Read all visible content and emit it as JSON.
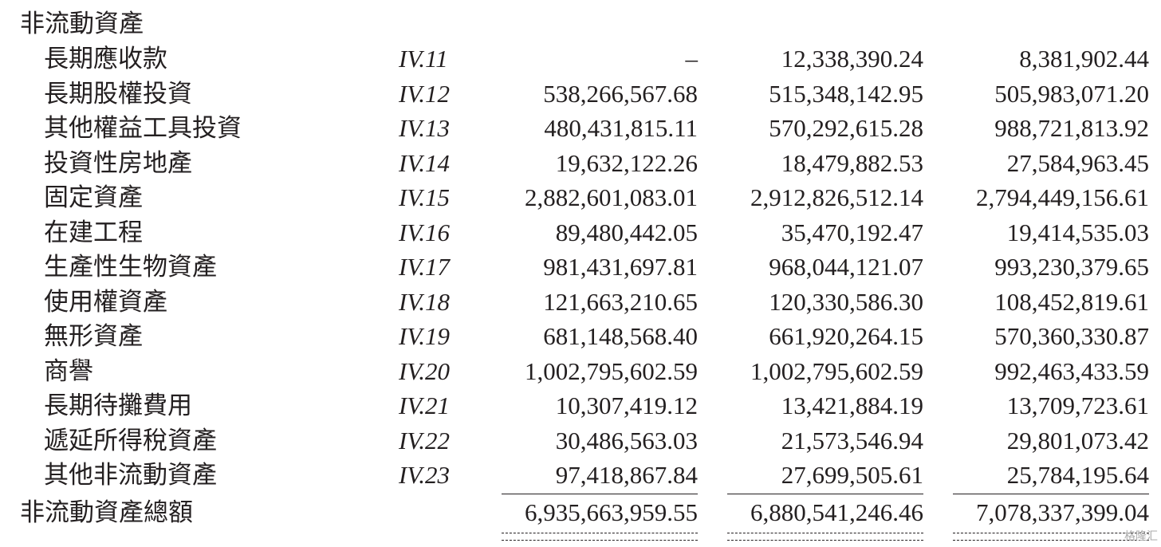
{
  "table": {
    "section_title": "非流動資產",
    "rows": [
      [
        "長期應收款",
        "IV.11",
        "–",
        "12,338,390.24",
        "8,381,902.44"
      ],
      [
        "長期股權投資",
        "IV.12",
        "538,266,567.68",
        "515,348,142.95",
        "505,983,071.20"
      ],
      [
        "其他權益工具投資",
        "IV.13",
        "480,431,815.11",
        "570,292,615.28",
        "988,721,813.92"
      ],
      [
        "投資性房地產",
        "IV.14",
        "19,632,122.26",
        "18,479,882.53",
        "27,584,963.45"
      ],
      [
        "固定資產",
        "IV.15",
        "2,882,601,083.01",
        "2,912,826,512.14",
        "2,794,449,156.61"
      ],
      [
        "在建工程",
        "IV.16",
        "89,480,442.05",
        "35,470,192.47",
        "19,414,535.03"
      ],
      [
        "生產性生物資產",
        "IV.17",
        "981,431,697.81",
        "968,044,121.07",
        "993,230,379.65"
      ],
      [
        "使用權資產",
        "IV.18",
        "121,663,210.65",
        "120,330,586.30",
        "108,452,819.61"
      ],
      [
        "無形資產",
        "IV.19",
        "681,148,568.40",
        "661,920,264.15",
        "570,360,330.87"
      ],
      [
        "商譽",
        "IV.20",
        "1,002,795,602.59",
        "1,002,795,602.59",
        "992,463,433.59"
      ],
      [
        "長期待攤費用",
        "IV.21",
        "10,307,419.12",
        "13,421,884.19",
        "13,709,723.61"
      ],
      [
        "遞延所得稅資產",
        "IV.22",
        "30,486,563.03",
        "21,573,546.94",
        "29,801,073.42"
      ],
      [
        "其他非流動資產",
        "IV.23",
        "97,418,867.84",
        "27,699,505.61",
        "25,784,195.64"
      ]
    ],
    "total": {
      "label": "非流動資產總額",
      "values": [
        "6,935,663,959.55",
        "6,880,541,246.46",
        "7,078,337,399.04"
      ]
    }
  },
  "watermark": "格隆汇"
}
